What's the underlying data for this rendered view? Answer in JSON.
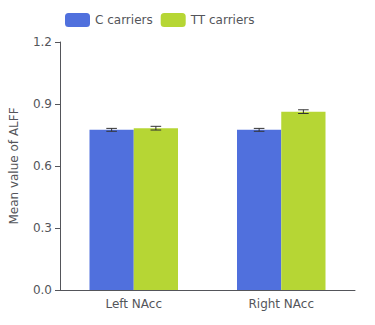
{
  "chart_data": {
    "type": "bar",
    "ylabel": "Mean value of ALFF",
    "categories": [
      "Left NAcc",
      "Right NAcc"
    ],
    "series": [
      {
        "name": "C carriers",
        "values": [
          0.775,
          0.775
        ],
        "errors": [
          0.007,
          0.007
        ]
      },
      {
        "name": "TT carriers",
        "values": [
          0.783,
          0.863
        ],
        "errors": [
          0.009,
          0.009
        ]
      }
    ],
    "ylim": [
      0,
      1.2
    ],
    "yticks": [
      {
        "value": 0,
        "label": "0.0"
      },
      0.3,
      0.6,
      0.9,
      1.2
    ],
    "grid": false,
    "legend": "upper left"
  }
}
